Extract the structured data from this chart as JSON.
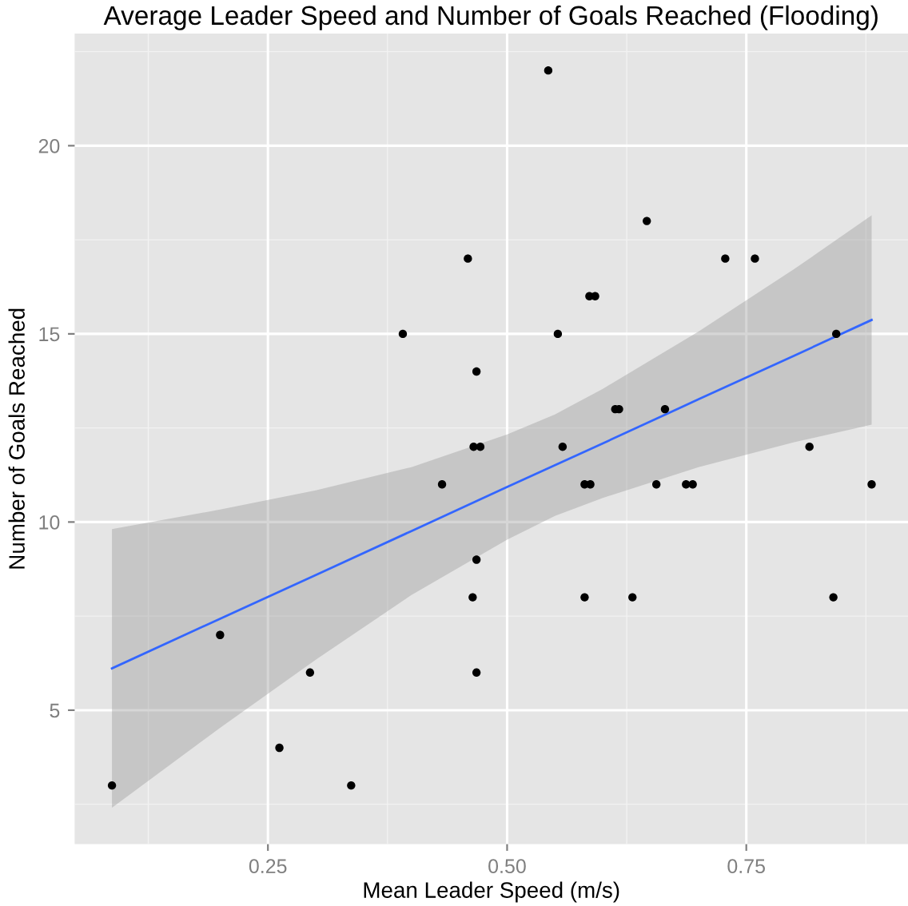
{
  "chart_data": {
    "type": "scatter",
    "title": "Average Leader Speed and Number of Goals Reached (Flooding)",
    "xlabel": "Mean Leader Speed (m/s)",
    "ylabel": "Number of Goals Reached",
    "series": [
      {
        "color": "#000000",
        "marker": "circle",
        "x": [
          0.087,
          0.2,
          0.262,
          0.294,
          0.337,
          0.391,
          0.432,
          0.459,
          0.464,
          0.468,
          0.465,
          0.472,
          0.468,
          0.468,
          0.543,
          0.553,
          0.558,
          0.581,
          0.581,
          0.587,
          0.586,
          0.592,
          0.613,
          0.617,
          0.631,
          0.646,
          0.656,
          0.665,
          0.687,
          0.694,
          0.728,
          0.759,
          0.816,
          0.841,
          0.844,
          0.881
        ],
        "values": [
          3,
          7,
          4,
          6,
          3,
          15,
          11,
          17,
          8,
          14,
          12,
          12,
          9,
          6,
          22,
          15,
          12,
          8,
          11,
          11,
          16,
          16,
          13,
          13,
          8,
          18,
          11,
          13,
          11,
          11,
          17,
          17,
          12,
          8,
          15,
          11
        ]
      },
      {
        "type": "line",
        "color": "#3366ff",
        "x": [
          0.087,
          0.2,
          0.3,
          0.4,
          0.5,
          0.55,
          0.6,
          0.7,
          0.8,
          0.881
        ],
        "values": [
          6.11,
          7.43,
          8.59,
          9.76,
          10.93,
          11.51,
          12.09,
          13.26,
          14.42,
          15.37
        ],
        "lower": [
          2.41,
          4.53,
          6.34,
          8.06,
          9.53,
          10.16,
          10.64,
          11.46,
          12.12,
          12.59
        ],
        "upper": [
          9.81,
          10.33,
          10.84,
          11.46,
          12.33,
          12.86,
          13.54,
          15.06,
          16.72,
          18.15
        ]
      }
    ],
    "xlim": [
      0.048,
      0.919
    ],
    "ylim": [
      1.44,
      22.98
    ],
    "xticks": [
      {
        "value": 0.25,
        "label": "0.25"
      },
      {
        "value": 0.5,
        "label": "0.50"
      },
      {
        "value": 0.75,
        "label": "0.75"
      }
    ],
    "yticks": [
      5,
      10,
      15,
      20
    ],
    "grid": true
  }
}
